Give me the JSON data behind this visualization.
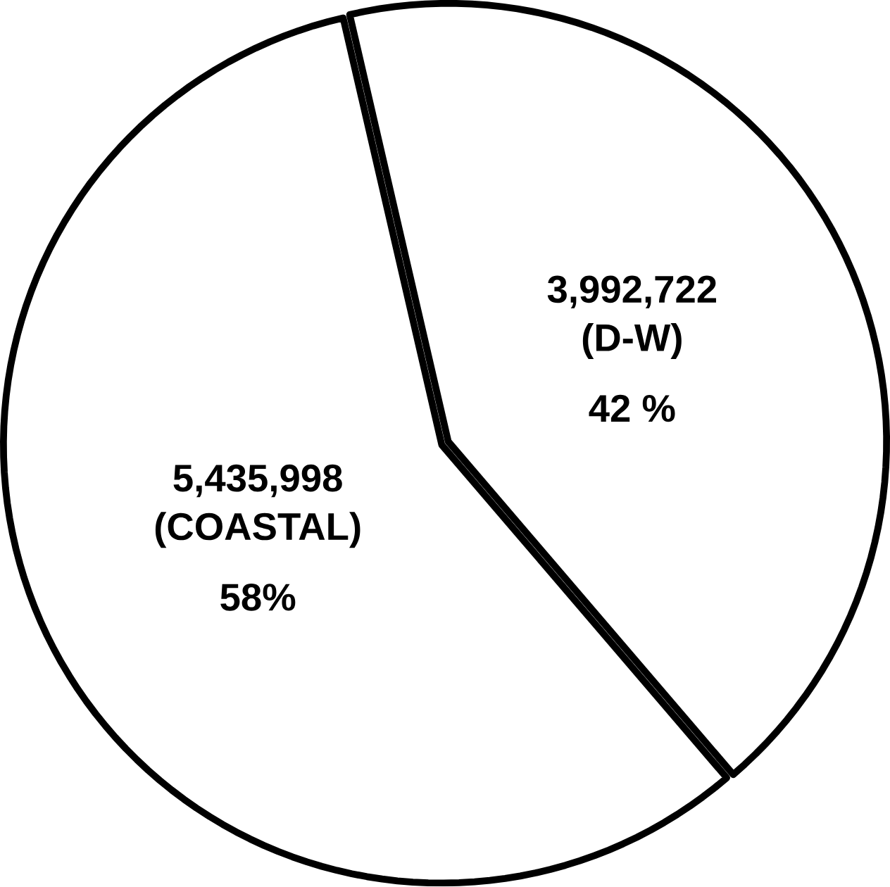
{
  "chart_data": {
    "type": "pie",
    "categories": [
      "(D-W)",
      "(COASTAL)"
    ],
    "values": [
      3992722,
      5435998
    ],
    "value_labels": [
      "3,992,722",
      "5,435,998"
    ],
    "colors": [
      "#ffffff",
      "#ffffff"
    ],
    "annotations": [
      "42 %",
      "58%"
    ]
  }
}
